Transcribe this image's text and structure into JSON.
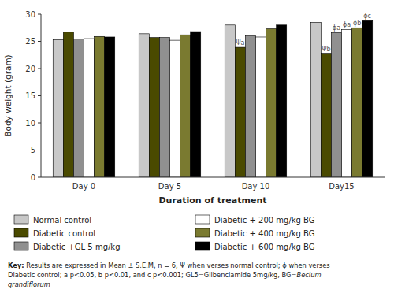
{
  "chart_data": {
    "type": "bar",
    "xlabel": "Duration of treatment",
    "ylabel": "Body weight (gram)",
    "categories": [
      "Day 0",
      "Day 5",
      "Day 10",
      "Day15"
    ],
    "series": [
      {
        "name": "Normal control",
        "color": "#c8c8c8",
        "values": [
          25.3,
          26.4,
          28.0,
          28.5
        ]
      },
      {
        "name": "Diabetic control",
        "color": "#4a4a00",
        "values": [
          26.7,
          25.7,
          23.9,
          22.8
        ]
      },
      {
        "name": "Diabetic +GL 5 mg/kg",
        "color": "#909090",
        "values": [
          25.4,
          25.7,
          26.0,
          26.6
        ]
      },
      {
        "name": "Diabetic + 200 mg/kg BG",
        "color": "#ffffff",
        "values": [
          25.5,
          25.2,
          25.8,
          27.2
        ]
      },
      {
        "name": "Diabetic + 400 mg/kg BG",
        "color": "#7a7a30",
        "values": [
          25.9,
          26.2,
          27.3,
          27.5
        ]
      },
      {
        "name": "Diabetic + 600 mg/kg BG",
        "color": "#000000",
        "values": [
          25.8,
          26.8,
          28.0,
          28.8
        ]
      }
    ],
    "annotations": [
      {
        "text": "Ψa",
        "category": "Day 10",
        "series": "Diabetic control"
      },
      {
        "text": "Ψb",
        "category": "Day15",
        "series": "Diabetic control"
      },
      {
        "text": "ϕa",
        "category": "Day15",
        "series": "Diabetic +GL 5 mg/kg"
      },
      {
        "text": "ϕa",
        "category": "Day15",
        "series": "Diabetic + 200 mg/kg BG"
      },
      {
        "text": "ϕb",
        "category": "Day15",
        "series": "Diabetic + 400 mg/kg BG"
      },
      {
        "text": "ϕc",
        "category": "Day15",
        "series": "Diabetic + 600 mg/kg BG"
      }
    ],
    "key_label": "Key:",
    "key_text": " Results are expressed in Mean ± S.E.M, n = 6, Ψ when verses normal control; ϕ when verses\nDiabetic control;   a p<0.05, b p<0.01, and c p<0.001; GL5=Glibenclamide 5mg/kg, BG=",
    "key_italic": "Becium\ngrandiflorum",
    "ylim": [
      0,
      30
    ],
    "yticks": [
      0,
      5,
      10,
      15,
      20,
      25,
      30
    ],
    "grid": false,
    "legend": "bottom"
  }
}
